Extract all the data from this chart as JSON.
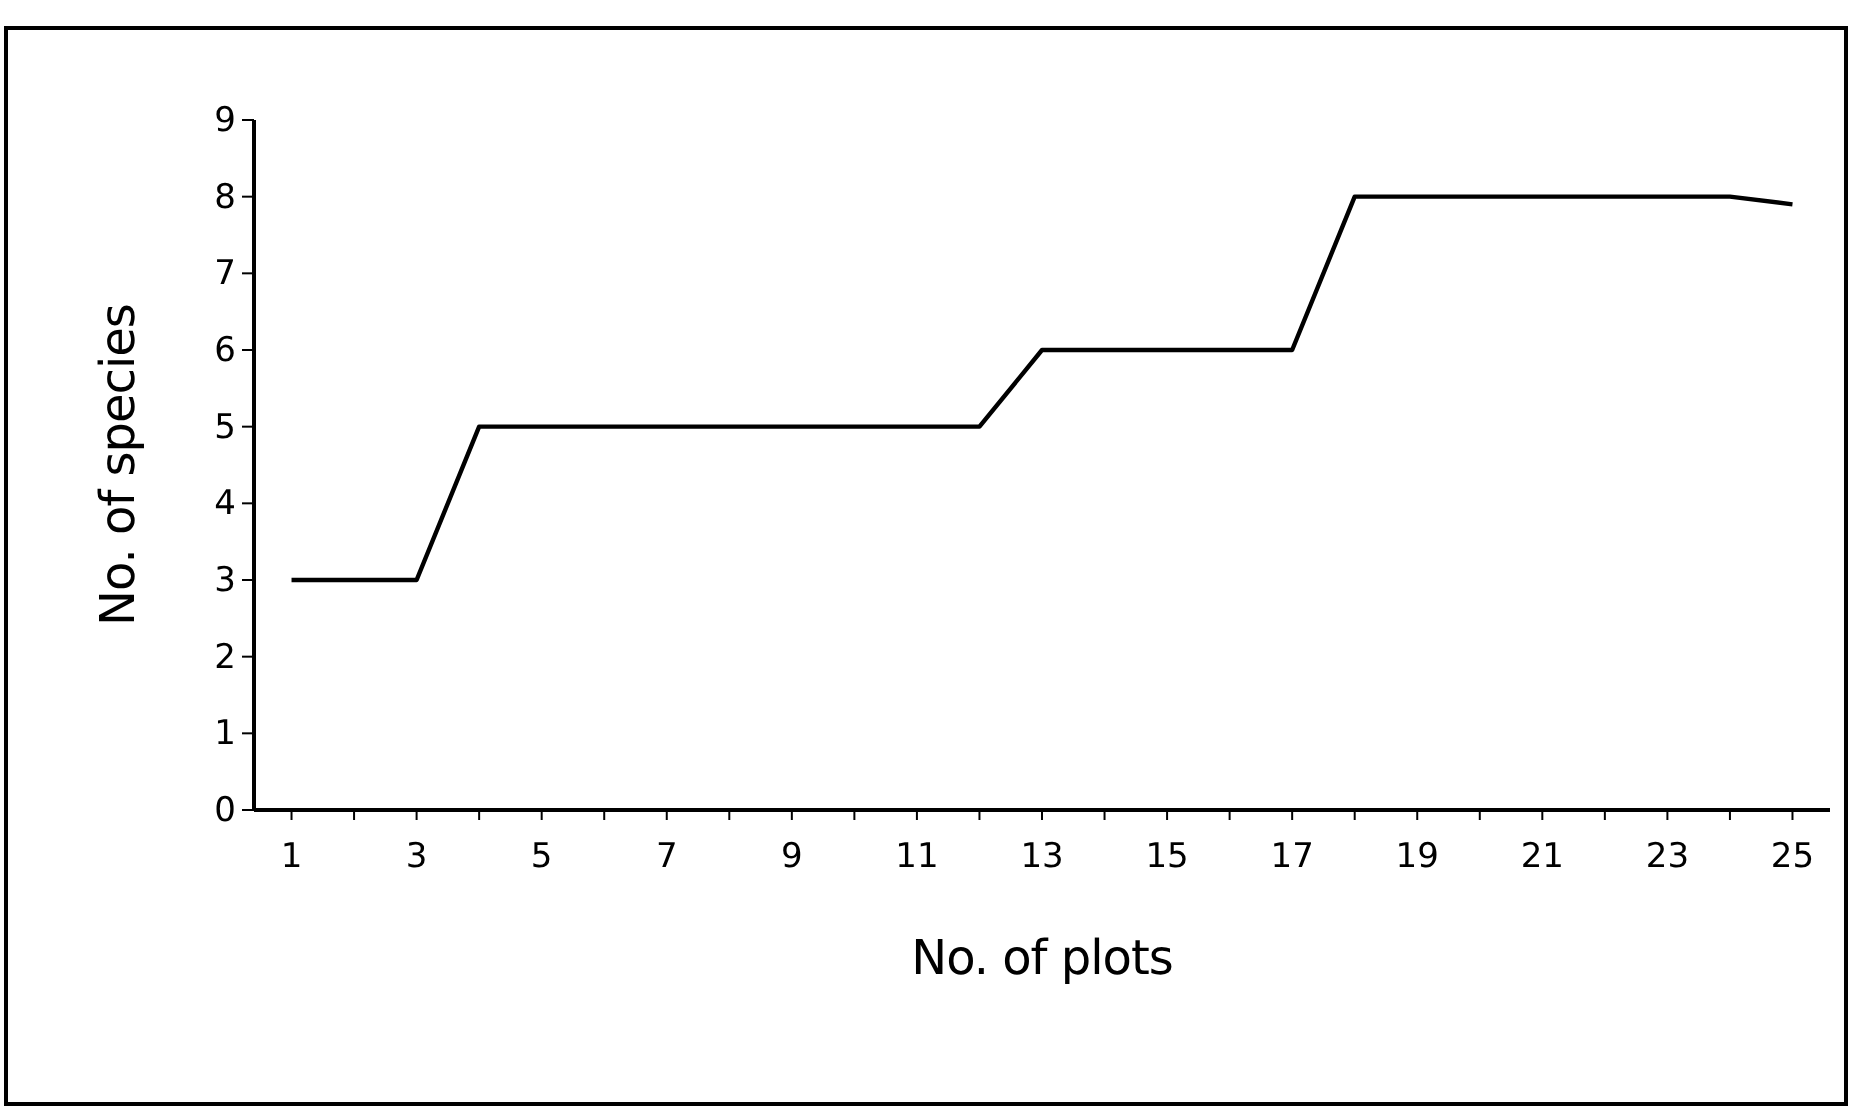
{
  "chart_data": {
    "type": "line",
    "xlabel": "No. of plots",
    "ylabel": "No. of species",
    "x": [
      1,
      2,
      3,
      4,
      5,
      6,
      7,
      8,
      9,
      10,
      11,
      12,
      13,
      14,
      15,
      16,
      17,
      18,
      19,
      20,
      21,
      22,
      23,
      24,
      25
    ],
    "xlim": [
      0.4,
      25.6
    ],
    "xticks": [
      1,
      {
        "value": 2,
        "label": null
      },
      3,
      {
        "value": 4,
        "label": null
      },
      5,
      {
        "value": 6,
        "label": null
      },
      7,
      {
        "value": 8,
        "label": null
      },
      9,
      {
        "value": 10,
        "label": null
      },
      11,
      {
        "value": 12,
        "label": null
      },
      13,
      {
        "value": 14,
        "label": null
      },
      15,
      {
        "value": 16,
        "label": null
      },
      17,
      {
        "value": 18,
        "label": null
      },
      19,
      {
        "value": 20,
        "label": null
      },
      21,
      {
        "value": 22,
        "label": null
      },
      23,
      {
        "value": 24,
        "label": null
      },
      25
    ],
    "series": [
      {
        "color": "#000000",
        "values": [
          3,
          3,
          3,
          5,
          5,
          5,
          5,
          5,
          5,
          5,
          5,
          5,
          6,
          6,
          6,
          6,
          6,
          8,
          8,
          8,
          8,
          8,
          8,
          8,
          7.9
        ]
      }
    ],
    "ylim": [
      0,
      9
    ],
    "yticks": [
      0,
      1,
      2,
      3,
      4,
      5,
      6,
      7,
      8,
      9
    ],
    "grid": false,
    "marker": "none",
    "line_style": "solid"
  }
}
